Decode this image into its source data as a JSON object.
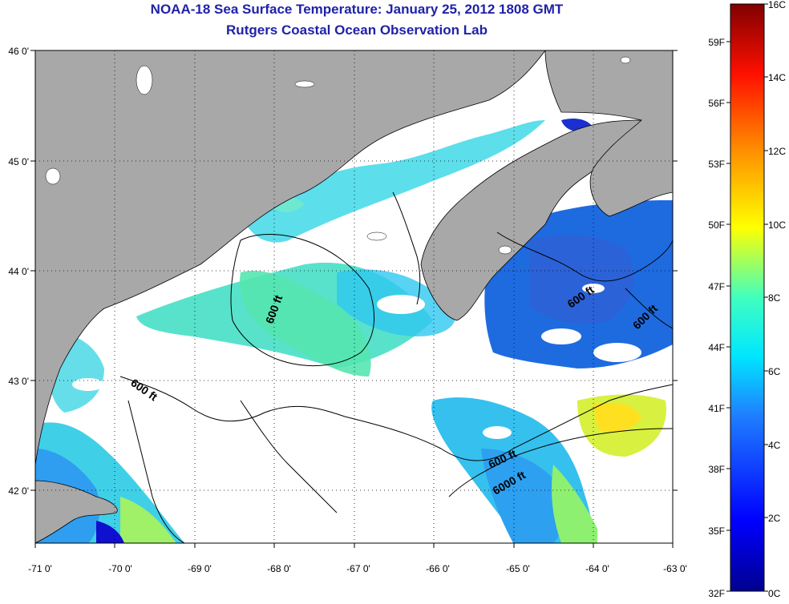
{
  "header": {
    "title": "NOAA-18 Sea Surface Temperature:  January 25, 2012 1808 GMT",
    "subtitle": "Rutgers Coastal Ocean Observation Lab"
  },
  "map": {
    "lat_ticks": [
      "46 0'",
      "45 0'",
      "44 0'",
      "43 0'",
      "42 0'"
    ],
    "lon_ticks": [
      "-71 0'",
      "-70 0'",
      "-69 0'",
      "-68 0'",
      "-67 0'",
      "-66 0'",
      "-65 0'",
      "-64 0'",
      "-63 0'"
    ],
    "lat_range": [
      41.5,
      46.0
    ],
    "lon_range": [
      -71.0,
      -63.0
    ],
    "contour_labels": [
      "600 ft",
      "600 ft",
      "600 ft",
      "600 ft",
      "600 ft",
      "6000 ft"
    ],
    "colors": {
      "land": "#a8a8a8",
      "cloud": "#ffffff",
      "frame": "#000000"
    }
  },
  "colorbar": {
    "celsius_labels": [
      "16C",
      "14C",
      "12C",
      "10C",
      "8C",
      "6C",
      "4C",
      "2C",
      "0C"
    ],
    "fahrenheit_labels": [
      "59F",
      "56F",
      "53F",
      "50F",
      "47F",
      "44F",
      "41F",
      "38F",
      "35F",
      "32F"
    ],
    "range_c": [
      0,
      16
    ]
  }
}
